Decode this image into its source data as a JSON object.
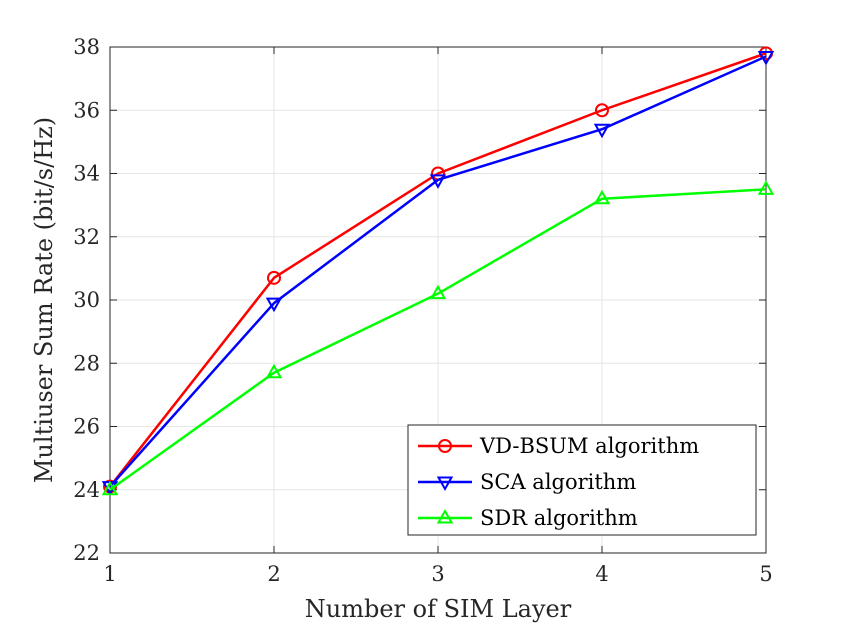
{
  "chart_data": {
    "type": "line",
    "title": "",
    "xlabel": "Number of SIM Layer",
    "ylabel": "Multiuser Sum Rate (bit/s/Hz)",
    "x": [
      1,
      2,
      3,
      4,
      5
    ],
    "xticks": [
      "1",
      "2",
      "3",
      "4",
      "5"
    ],
    "yticks": [
      "22",
      "24",
      "26",
      "28",
      "30",
      "32",
      "34",
      "36",
      "38"
    ],
    "xlim": [
      1,
      5
    ],
    "ylim": [
      22,
      38
    ],
    "grid": true,
    "legend_position": "bottom-right",
    "series": [
      {
        "name": "VD-BSUM algorithm",
        "color": "#ff0000",
        "marker": "circle",
        "values": [
          24.1,
          30.7,
          34.0,
          36.0,
          37.8
        ]
      },
      {
        "name": "SCA algorithm",
        "color": "#0000ff",
        "marker": "triangle-down",
        "values": [
          24.1,
          29.9,
          33.8,
          35.4,
          37.7
        ]
      },
      {
        "name": "SDR algorithm",
        "color": "#00ff00",
        "marker": "triangle-up",
        "values": [
          24.0,
          27.7,
          30.2,
          33.2,
          33.5
        ]
      }
    ]
  }
}
